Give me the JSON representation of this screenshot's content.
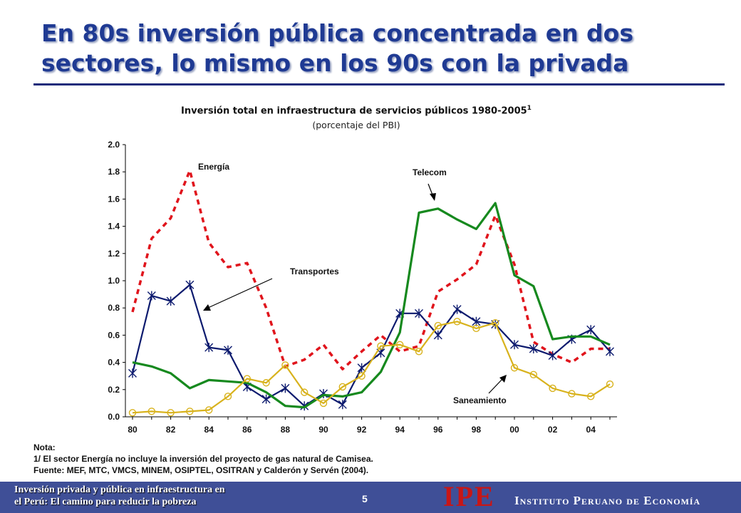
{
  "slide": {
    "title_line1": "En 80s inversión pública concentrada en dos",
    "title_line2": "sectores, lo mismo en los 90s con la privada"
  },
  "chart_data": {
    "type": "line",
    "title": "Inversión total en infraestructura de servicios públicos 1980-2005",
    "title_superscript": "1",
    "subtitle": "(porcentaje del PBI)",
    "x": [
      1980,
      1981,
      1982,
      1983,
      1984,
      1985,
      1986,
      1987,
      1988,
      1989,
      1990,
      1991,
      1992,
      1993,
      1994,
      1995,
      1996,
      1997,
      1998,
      1999,
      2000,
      2001,
      2002,
      2003,
      2004,
      2005
    ],
    "x_tick_labels": [
      "80",
      "82",
      "84",
      "86",
      "88",
      "90",
      "92",
      "94",
      "96",
      "98",
      "00",
      "02",
      "04"
    ],
    "y_tick_labels": [
      "0.0",
      "0.2",
      "0.4",
      "0.6",
      "0.8",
      "1.0",
      "1.2",
      "1.4",
      "1.6",
      "1.8",
      "2.0"
    ],
    "ylim": [
      0,
      2.0
    ],
    "grid": false,
    "series": [
      {
        "name": "Energía",
        "color": "#e0141c",
        "style": "dashed",
        "marker": "none",
        "values": [
          0.77,
          1.31,
          1.46,
          1.81,
          1.28,
          1.1,
          1.13,
          0.8,
          0.37,
          0.42,
          0.53,
          0.35,
          0.48,
          0.6,
          0.48,
          0.52,
          0.92,
          1.01,
          1.12,
          1.48,
          1.12,
          0.55,
          0.46,
          0.4,
          0.5,
          0.5
        ]
      },
      {
        "name": "Transportes",
        "color": "#0c1a6e",
        "style": "solid",
        "marker": "star",
        "values": [
          0.32,
          0.89,
          0.85,
          0.97,
          0.51,
          0.49,
          0.22,
          0.13,
          0.21,
          0.08,
          0.17,
          0.09,
          0.36,
          0.47,
          0.76,
          0.76,
          0.6,
          0.79,
          0.7,
          0.68,
          0.53,
          0.5,
          0.45,
          0.57,
          0.64,
          0.48
        ]
      },
      {
        "name": "Telecom",
        "color": "#16891e",
        "style": "solid",
        "marker": "none",
        "values": [
          0.4,
          0.37,
          0.32,
          0.21,
          0.27,
          0.26,
          0.25,
          0.18,
          0.08,
          0.07,
          0.16,
          0.15,
          0.18,
          0.33,
          0.62,
          1.5,
          1.53,
          1.45,
          1.38,
          1.57,
          1.04,
          0.96,
          0.57,
          0.59,
          0.59,
          0.53
        ]
      },
      {
        "name": "Saneamiento",
        "color": "#d8b21c",
        "style": "solid",
        "marker": "circle",
        "values": [
          0.03,
          0.04,
          0.03,
          0.04,
          0.05,
          0.15,
          0.28,
          0.25,
          0.38,
          0.18,
          0.1,
          0.22,
          0.3,
          0.52,
          0.53,
          0.48,
          0.67,
          0.7,
          0.65,
          0.69,
          0.36,
          0.31,
          0.21,
          0.17,
          0.15,
          0.24
        ]
      }
    ],
    "annotations": {
      "energia": "Energía",
      "telecom": "Telecom",
      "transportes": "Transportes",
      "saneamiento": "Saneamiento"
    }
  },
  "notes": {
    "heading": "Nota:",
    "note1": "1/ El sector Energía no incluye la inversión del proyecto de gas natural de Camisea.",
    "source": "Fuente: MEF, MTC, VMCS, MINEM, OSIPTEL, OSITRAN y Calderón y Servén (2004)."
  },
  "footer": {
    "left_line1": "Inversión privada y pública en infraestructura en",
    "left_line2": "el Perú: El camino para reducir la pobreza",
    "page_number": "5",
    "logo": "IPE",
    "organization": "Instituto Peruano de Economía"
  }
}
